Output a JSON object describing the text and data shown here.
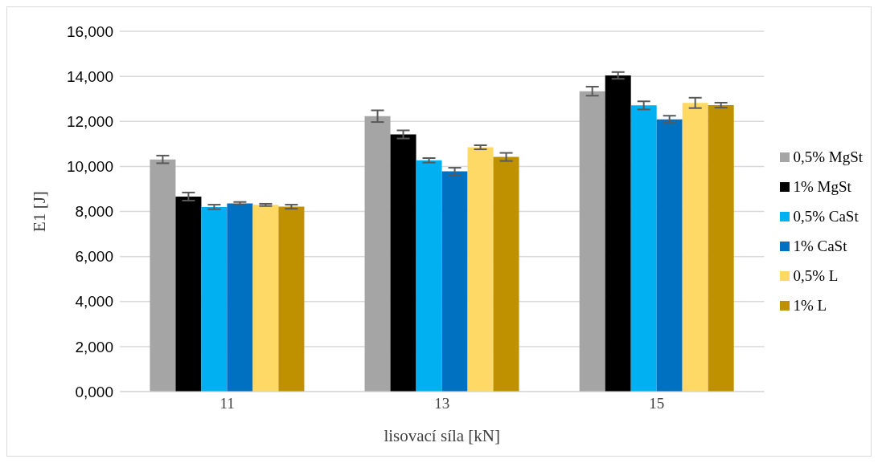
{
  "chart_data": {
    "type": "bar",
    "xlabel": "lisovací síla [kN]",
    "ylabel": "E1 [J]",
    "categories": [
      "11",
      "13",
      "15"
    ],
    "ylim": [
      0,
      16
    ],
    "yticks": [
      {
        "value": 0,
        "label": "0,000"
      },
      {
        "value": 2,
        "label": "2,000"
      },
      {
        "value": 4,
        "label": "4,000"
      },
      {
        "value": 6,
        "label": "6,000"
      },
      {
        "value": 8,
        "label": "8,000"
      },
      {
        "value": 10,
        "label": "10,000"
      },
      {
        "value": 12,
        "label": "12,000"
      },
      {
        "value": 14,
        "label": "14,000"
      },
      {
        "value": 16,
        "label": "16,000"
      }
    ],
    "grid": "y",
    "legend": "right",
    "series": [
      {
        "name": "0,5% MgSt",
        "color": "#a5a5a5",
        "values": [
          10.31,
          12.23,
          13.34
        ],
        "errors": [
          0.17,
          0.26,
          0.2
        ]
      },
      {
        "name": "1% MgSt",
        "color": "#000000",
        "values": [
          8.66,
          11.42,
          14.04
        ],
        "errors": [
          0.18,
          0.18,
          0.15
        ]
      },
      {
        "name": "0,5% CaSt",
        "color": "#00b0f0",
        "values": [
          8.2,
          10.27,
          12.71
        ],
        "errors": [
          0.1,
          0.1,
          0.18
        ]
      },
      {
        "name": "1% CaSt",
        "color": "#0070c0",
        "values": [
          8.36,
          9.78,
          12.09
        ],
        "errors": [
          0.06,
          0.16,
          0.16
        ]
      },
      {
        "name": "0,5% L",
        "color": "#ffd966",
        "values": [
          8.29,
          10.85,
          12.82
        ],
        "errors": [
          0.05,
          0.09,
          0.23
        ]
      },
      {
        "name": "1% L",
        "color": "#bf9000",
        "values": [
          8.21,
          10.42,
          12.72
        ],
        "errors": [
          0.09,
          0.18,
          0.11
        ]
      }
    ]
  }
}
